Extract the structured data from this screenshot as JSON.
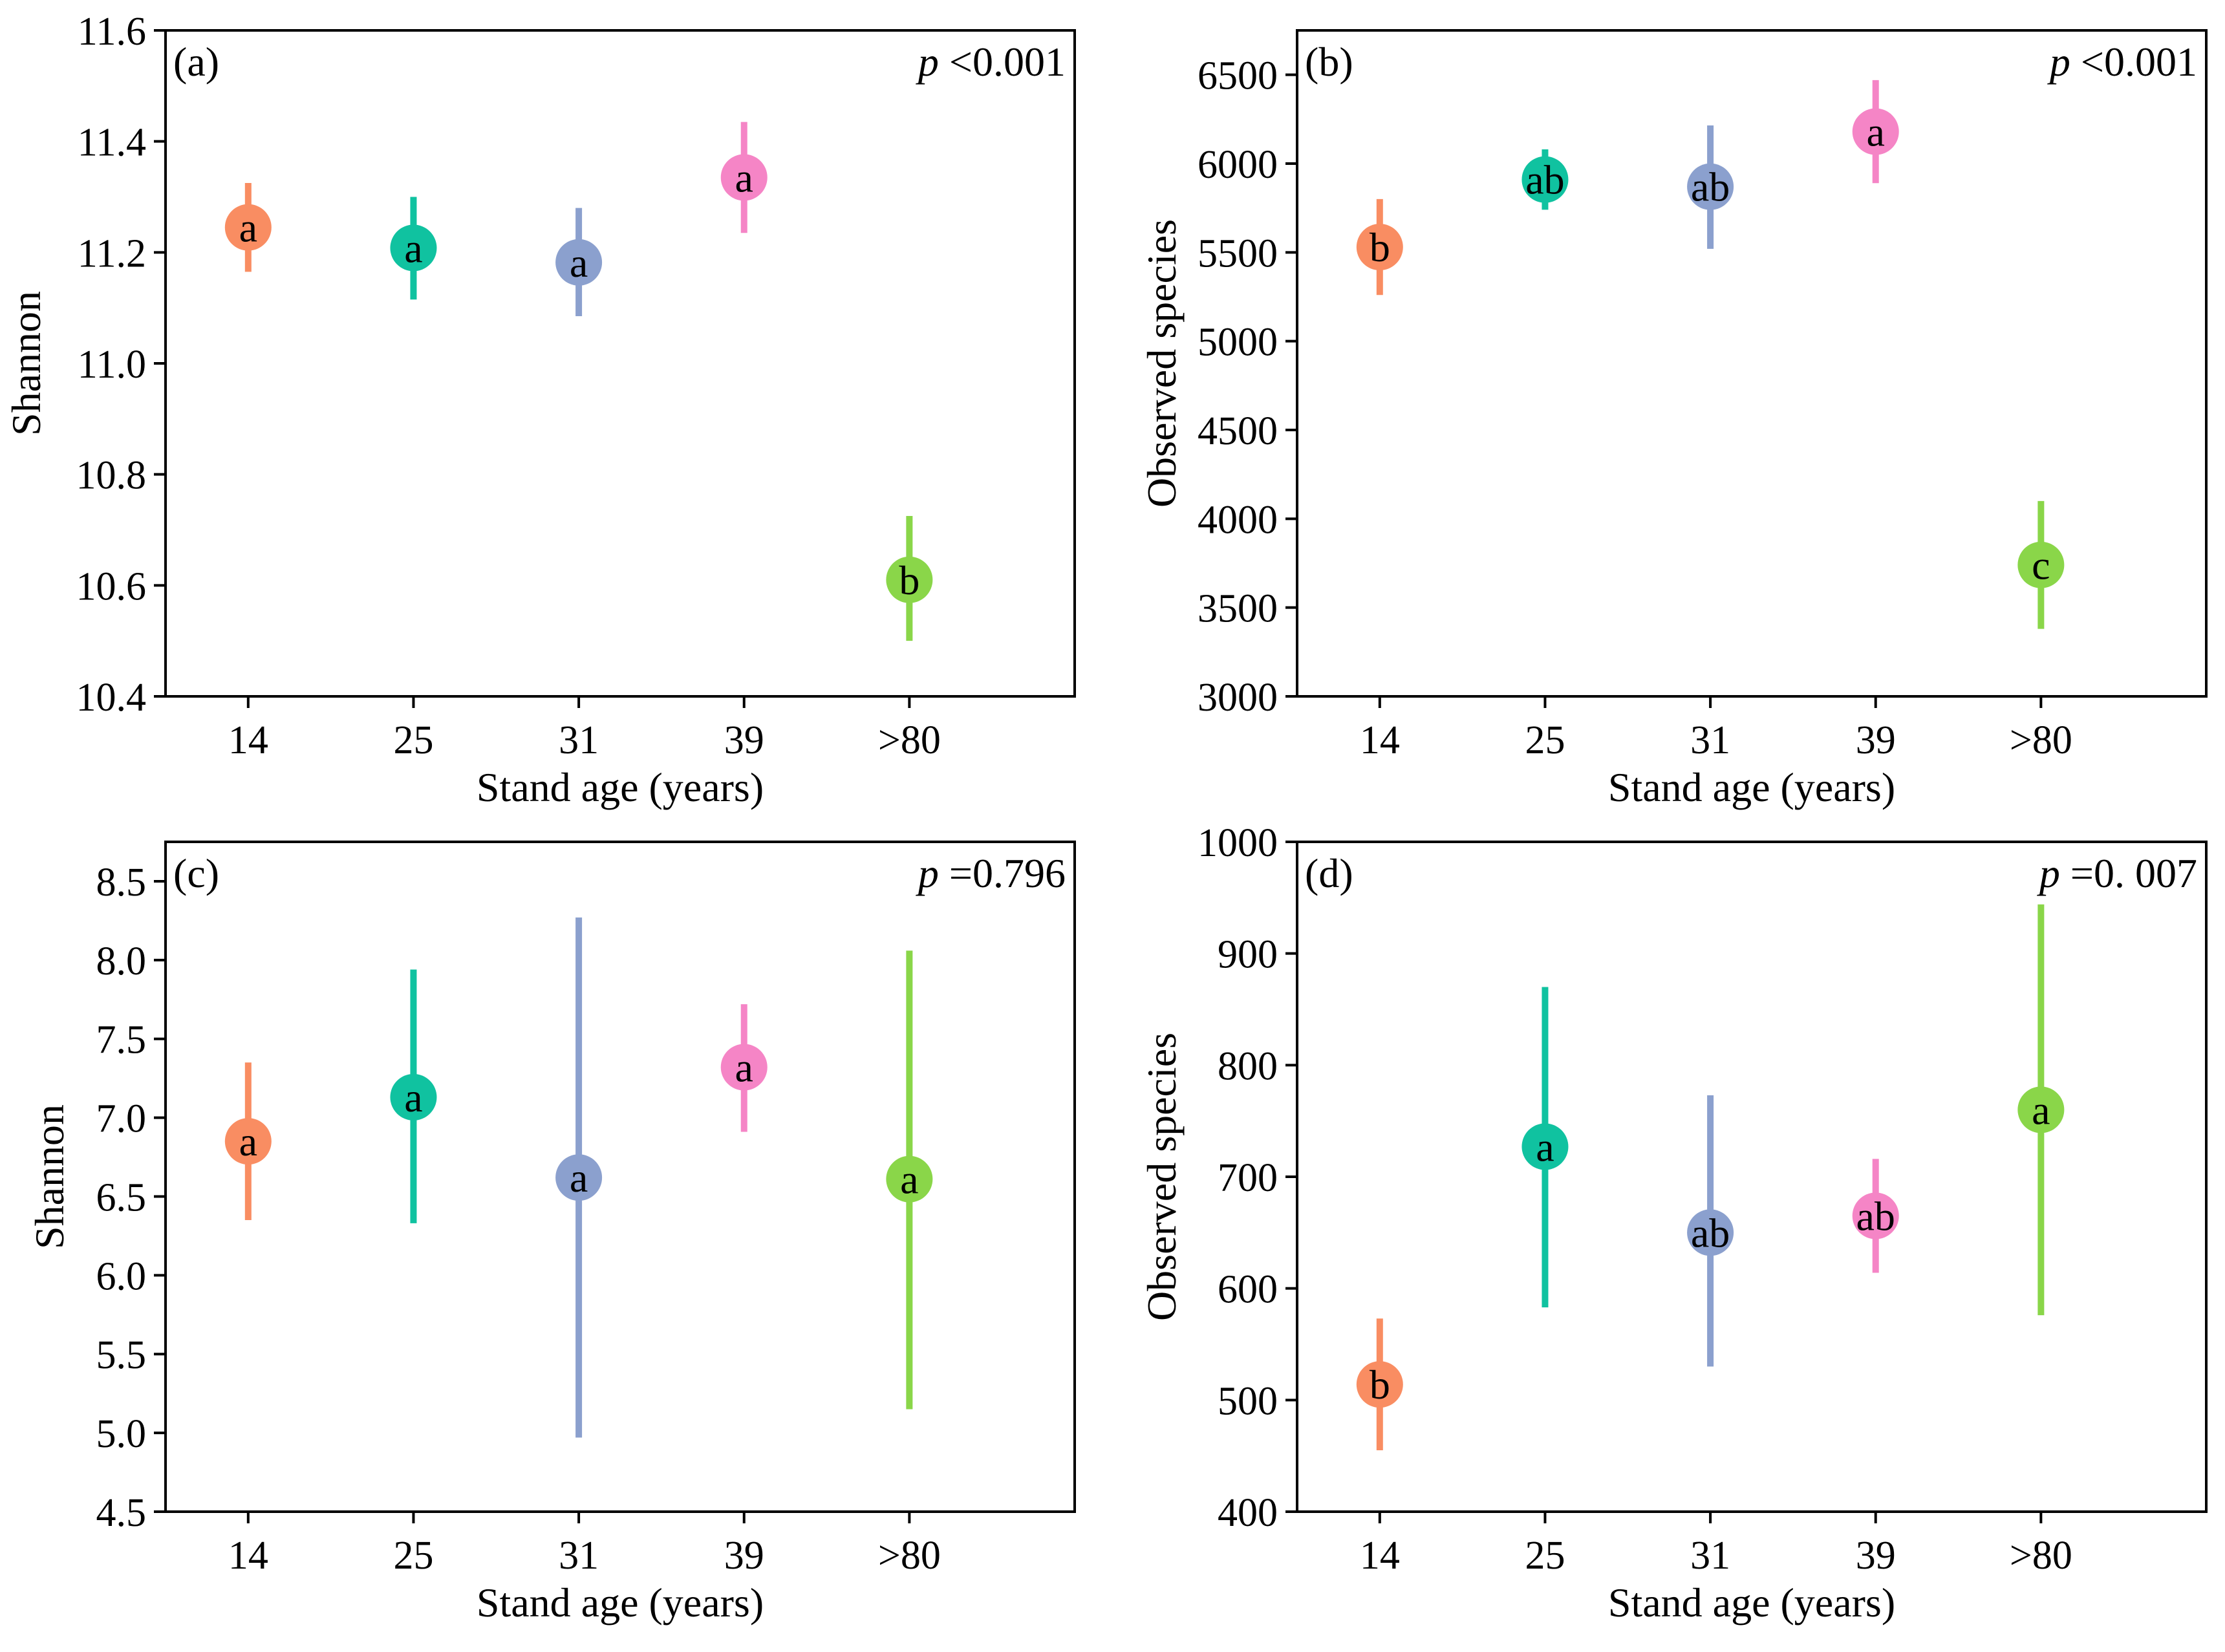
{
  "chart_data": [
    {
      "type": "scatter",
      "panel_label": "(a)",
      "p_label": "p",
      "p_value": " <0.001",
      "xlabel": "Stand age (years)",
      "ylabel": "Shannon",
      "categories": [
        "14",
        "25",
        "31",
        "39",
        ">80"
      ],
      "yticks": [
        "10.4",
        "10.6",
        "10.8",
        "11.0",
        "11.2",
        "11.4",
        "11.6"
      ],
      "ylim": [
        10.4,
        11.6
      ],
      "points": [
        {
          "x": "14",
          "y": 11.245,
          "low": 11.165,
          "high": 11.325,
          "letter": "a",
          "color": "#F98D62"
        },
        {
          "x": "25",
          "y": 11.208,
          "low": 11.115,
          "high": 11.3,
          "letter": "a",
          "color": "#10C2A0"
        },
        {
          "x": "31",
          "y": 11.182,
          "low": 11.085,
          "high": 11.28,
          "letter": "a",
          "color": "#8BA0CE"
        },
        {
          "x": "39",
          "y": 11.335,
          "low": 11.235,
          "high": 11.435,
          "letter": "a",
          "color": "#F585C6"
        },
        {
          "x": ">80",
          "y": 10.61,
          "low": 10.5,
          "high": 10.725,
          "letter": "b",
          "color": "#8AD649"
        }
      ]
    },
    {
      "type": "scatter",
      "panel_label": "(b)",
      "p_label": "p",
      "p_value": " <0.001",
      "xlabel": "Stand age (years)",
      "ylabel": "Observed species",
      "categories": [
        "14",
        "25",
        "31",
        "39",
        ">80"
      ],
      "yticks": [
        "3000",
        "3500",
        "4000",
        "4500",
        "5000",
        "5500",
        "6000",
        "6500"
      ],
      "ylim": [
        3000,
        6750
      ],
      "points": [
        {
          "x": "14",
          "y": 5530,
          "low": 5260,
          "high": 5800,
          "letter": "b",
          "color": "#F98D62"
        },
        {
          "x": "25",
          "y": 5910,
          "low": 5740,
          "high": 6080,
          "letter": "ab",
          "color": "#10C2A0"
        },
        {
          "x": "31",
          "y": 5870,
          "low": 5520,
          "high": 6215,
          "letter": "ab",
          "color": "#8BA0CE"
        },
        {
          "x": "39",
          "y": 6180,
          "low": 5890,
          "high": 6470,
          "letter": "a",
          "color": "#F585C6"
        },
        {
          "x": ">80",
          "y": 3740,
          "low": 3380,
          "high": 4100,
          "letter": "c",
          "color": "#8AD649"
        }
      ]
    },
    {
      "type": "scatter",
      "panel_label": "(c)",
      "p_label": "p",
      "p_value": " =0.796",
      "xlabel": "Stand age (years)",
      "ylabel": "Shannon",
      "categories": [
        "14",
        "25",
        "31",
        "39",
        ">80"
      ],
      "yticks": [
        "4.5",
        "5.0",
        "5.5",
        "6.0",
        "6.5",
        "7.0",
        "7.5",
        "8.0",
        "8.5"
      ],
      "ylim": [
        4.5,
        8.75
      ],
      "points": [
        {
          "x": "14",
          "y": 6.85,
          "low": 6.35,
          "high": 7.35,
          "letter": "a",
          "color": "#F98D62"
        },
        {
          "x": "25",
          "y": 7.13,
          "low": 6.33,
          "high": 7.94,
          "letter": "a",
          "color": "#10C2A0"
        },
        {
          "x": "31",
          "y": 6.62,
          "low": 4.97,
          "high": 8.27,
          "letter": "a",
          "color": "#8BA0CE"
        },
        {
          "x": "39",
          "y": 7.32,
          "low": 6.91,
          "high": 7.72,
          "letter": "a",
          "color": "#F585C6"
        },
        {
          "x": ">80",
          "y": 6.61,
          "low": 5.15,
          "high": 8.06,
          "letter": "a",
          "color": "#8AD649"
        }
      ]
    },
    {
      "type": "scatter",
      "panel_label": "(d)",
      "p_label": "p",
      "p_value": " =0. 007",
      "xlabel": "Stand age (years)",
      "ylabel": "Observed species",
      "categories": [
        "14",
        "25",
        "31",
        "39",
        ">80"
      ],
      "yticks": [
        "400",
        "500",
        "600",
        "700",
        "800",
        "900",
        "1000"
      ],
      "ylim": [
        400,
        1000
      ],
      "points": [
        {
          "x": "14",
          "y": 514,
          "low": 455,
          "high": 573,
          "letter": "b",
          "color": "#F98D62"
        },
        {
          "x": "25",
          "y": 727,
          "low": 583,
          "high": 870,
          "letter": "a",
          "color": "#10C2A0"
        },
        {
          "x": "31",
          "y": 650,
          "low": 530,
          "high": 773,
          "letter": "ab",
          "color": "#8BA0CE"
        },
        {
          "x": "39",
          "y": 665,
          "low": 614,
          "high": 716,
          "letter": "ab",
          "color": "#F585C6"
        },
        {
          "x": ">80",
          "y": 760,
          "low": 576,
          "high": 944,
          "letter": "a",
          "color": "#8AD649"
        }
      ]
    }
  ]
}
